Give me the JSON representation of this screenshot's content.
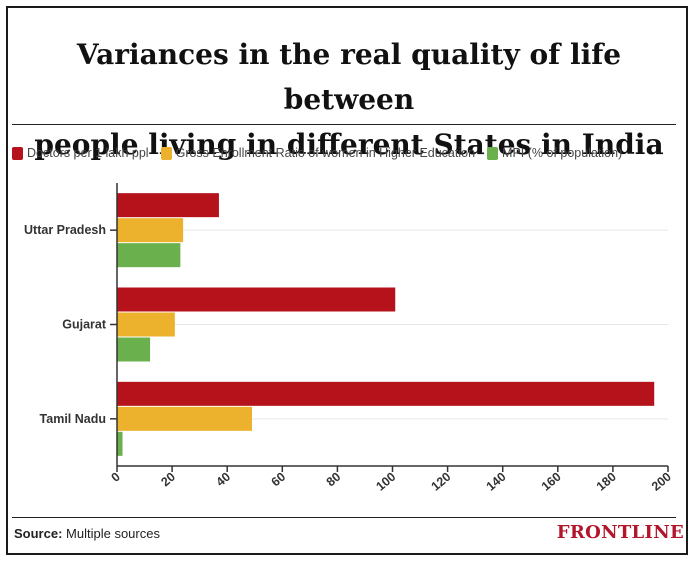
{
  "header": {
    "title_line1": "Variances in the real quality of life between",
    "title_line2": "people living in different States in India"
  },
  "chart_data": {
    "type": "bar",
    "orientation": "horizontal",
    "title": "Variances in the real quality of life between people living in different States in India",
    "categories": [
      "Uttar Pradesh",
      "Gujarat",
      "Tamil Nadu"
    ],
    "series": [
      {
        "name": "Doctors per 1 lakh ppl",
        "color": "#b5121b",
        "values": [
          37,
          101,
          195
        ]
      },
      {
        "name": "Gross Enrollment Ratio of women in Higher Education",
        "color": "#ecb22e",
        "values": [
          24,
          21,
          49
        ]
      },
      {
        "name": "MPI (% of population)",
        "color": "#6ab04c",
        "values": [
          23,
          12,
          2
        ]
      }
    ],
    "xlim": [
      0,
      200
    ],
    "xticks": [
      "0",
      "20",
      "40",
      "60",
      "80",
      "100",
      "120",
      "140",
      "160",
      "180",
      "200"
    ],
    "grid": true,
    "legend_position": "top-left"
  },
  "footer": {
    "source_label": "Source:",
    "source_text": "Multiple sources",
    "brand": "FRONTLINE"
  }
}
